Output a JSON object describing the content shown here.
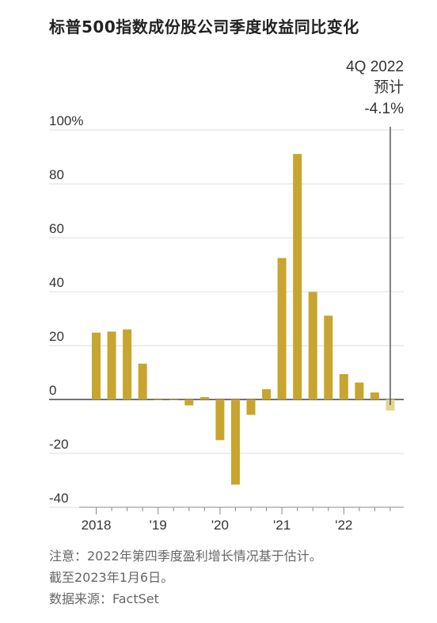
{
  "title": "标普500指数成份股公司季度收益同比变化",
  "notes": {
    "line1": "注意：2022年第四季度盈利增长情况基于估计。",
    "line2": "截至2023年1月6日。",
    "source": "数据来源：FactSet"
  },
  "chart_data": {
    "type": "bar",
    "title": "标普500指数成份股公司季度收益同比变化",
    "xlabel": "",
    "ylabel": "",
    "ylim": [
      -40,
      100
    ],
    "y_ticks": [
      -40,
      -20,
      0,
      20,
      40,
      60,
      80,
      100
    ],
    "y_tick_labels": [
      "-40",
      "-20",
      "0",
      "20",
      "40",
      "60",
      "80",
      "100%"
    ],
    "x_tick_labels": [
      "2018",
      "'19",
      "'20",
      "'21",
      "'22"
    ],
    "categories": [
      "1Q 2018",
      "2Q 2018",
      "3Q 2018",
      "4Q 2018",
      "1Q 2019",
      "2Q 2019",
      "3Q 2019",
      "4Q 2019",
      "1Q 2020",
      "2Q 2020",
      "3Q 2020",
      "4Q 2020",
      "1Q 2021",
      "2Q 2021",
      "3Q 2021",
      "4Q 2021",
      "1Q 2022",
      "2Q 2022",
      "3Q 2022",
      "4Q 2022"
    ],
    "values": [
      24.8,
      25.2,
      26.0,
      13.3,
      -0.2,
      0.0,
      -2.2,
      0.9,
      -15.1,
      -31.6,
      -5.7,
      3.8,
      52.5,
      91.1,
      39.9,
      31.1,
      9.4,
      6.3,
      2.6,
      -4.1
    ],
    "estimated": [
      false,
      false,
      false,
      false,
      false,
      false,
      false,
      false,
      false,
      false,
      false,
      false,
      false,
      false,
      false,
      false,
      false,
      false,
      false,
      true
    ],
    "bar_color": "#c7a52f",
    "estimate_color": "#e5d48f",
    "annotation": {
      "label1": "4Q 2022",
      "label2": "预计",
      "label3": "-4.1%"
    },
    "grid": true
  }
}
